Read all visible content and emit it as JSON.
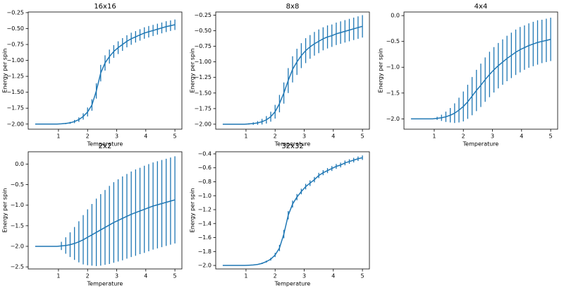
{
  "chart_data": [
    {
      "type": "errorbar",
      "title": "16x16",
      "xlabel": "Temperature",
      "ylabel": "Energy per spin",
      "color": "#1f77b4",
      "x": [
        0.2,
        0.35,
        0.5,
        0.65,
        0.8,
        0.95,
        1.1,
        1.25,
        1.4,
        1.55,
        1.7,
        1.85,
        2.0,
        2.15,
        2.3,
        2.45,
        2.6,
        2.75,
        2.9,
        3.05,
        3.2,
        3.35,
        3.5,
        3.65,
        3.8,
        3.95,
        4.1,
        4.25,
        4.4,
        4.55,
        4.7,
        4.85,
        5.0
      ],
      "values": [
        -2.0,
        -2.0,
        -2.0,
        -2.0,
        -2.0,
        -2.0,
        -1.996,
        -1.99,
        -1.98,
        -1.96,
        -1.93,
        -1.88,
        -1.81,
        -1.7,
        -1.48,
        -1.2,
        -1.04,
        -0.94,
        -0.86,
        -0.8,
        -0.75,
        -0.7,
        -0.66,
        -0.63,
        -0.6,
        -0.57,
        -0.55,
        -0.53,
        -0.51,
        -0.49,
        -0.47,
        -0.455,
        -0.44
      ],
      "errors": [
        0,
        0,
        0,
        0,
        0,
        0,
        0.005,
        0.01,
        0.015,
        0.025,
        0.035,
        0.05,
        0.07,
        0.09,
        0.12,
        0.13,
        0.12,
        0.11,
        0.1,
        0.1,
        0.1,
        0.095,
        0.095,
        0.09,
        0.09,
        0.09,
        0.09,
        0.088,
        0.086,
        0.085,
        0.085,
        0.083,
        0.082
      ],
      "xlim": [
        -0.04,
        5.24
      ],
      "xticks": [
        1,
        2,
        3,
        4,
        5
      ],
      "ylim": [
        -2.08,
        -0.24
      ],
      "yticks": [
        {
          "value": -2,
          "label": "−2.00"
        },
        {
          "value": -1.75,
          "label": "−1.75"
        },
        {
          "value": -1.5,
          "label": "−1.50"
        },
        {
          "value": -1.25,
          "label": "−1.25"
        },
        {
          "value": -1,
          "label": "−1.00"
        },
        {
          "value": -0.75,
          "label": "−0.75"
        },
        {
          "value": -0.5,
          "label": "−0.50"
        },
        {
          "value": -0.25,
          "label": "−0.25"
        }
      ]
    },
    {
      "type": "errorbar",
      "title": "8x8",
      "xlabel": "Temperature",
      "ylabel": "Energy per spin",
      "color": "#1f77b4",
      "x": [
        0.2,
        0.35,
        0.5,
        0.65,
        0.8,
        0.95,
        1.1,
        1.25,
        1.4,
        1.55,
        1.7,
        1.85,
        2.0,
        2.15,
        2.3,
        2.45,
        2.6,
        2.75,
        2.9,
        3.05,
        3.2,
        3.35,
        3.5,
        3.65,
        3.8,
        3.95,
        4.1,
        4.25,
        4.4,
        4.55,
        4.7,
        4.85,
        5.0
      ],
      "values": [
        -2.0,
        -2.0,
        -2.0,
        -2.0,
        -2.0,
        -2.0,
        -1.995,
        -1.99,
        -1.98,
        -1.96,
        -1.93,
        -1.88,
        -1.8,
        -1.67,
        -1.5,
        -1.3,
        -1.12,
        -1.0,
        -0.9,
        -0.82,
        -0.76,
        -0.71,
        -0.67,
        -0.63,
        -0.6,
        -0.58,
        -0.55,
        -0.53,
        -0.51,
        -0.49,
        -0.47,
        -0.45,
        -0.43
      ],
      "errors": [
        0,
        0,
        0,
        0,
        0,
        0,
        0.01,
        0.02,
        0.03,
        0.045,
        0.06,
        0.08,
        0.11,
        0.14,
        0.17,
        0.2,
        0.21,
        0.21,
        0.2,
        0.2,
        0.19,
        0.19,
        0.19,
        0.185,
        0.185,
        0.18,
        0.18,
        0.18,
        0.18,
        0.18,
        0.18,
        0.18,
        0.18
      ],
      "xlim": [
        -0.04,
        5.24
      ],
      "xticks": [
        1,
        2,
        3,
        4,
        5
      ],
      "ylim": [
        -2.08,
        -0.2
      ],
      "yticks": [
        {
          "value": -2,
          "label": "−2.00"
        },
        {
          "value": -1.75,
          "label": "−1.75"
        },
        {
          "value": -1.5,
          "label": "−1.50"
        },
        {
          "value": -1.25,
          "label": "−1.25"
        },
        {
          "value": -1,
          "label": "−1.00"
        },
        {
          "value": -0.75,
          "label": "−0.75"
        },
        {
          "value": -0.5,
          "label": "−0.50"
        },
        {
          "value": -0.25,
          "label": "−0.25"
        }
      ]
    },
    {
      "type": "errorbar",
      "title": "4x4",
      "xlabel": "Temperature",
      "ylabel": "Energy per spin",
      "color": "#1f77b4",
      "x": [
        0.2,
        0.35,
        0.5,
        0.65,
        0.8,
        0.95,
        1.1,
        1.25,
        1.4,
        1.55,
        1.7,
        1.85,
        2.0,
        2.15,
        2.3,
        2.45,
        2.6,
        2.75,
        2.9,
        3.05,
        3.2,
        3.35,
        3.5,
        3.65,
        3.8,
        3.95,
        4.1,
        4.25,
        4.4,
        4.55,
        4.7,
        4.85,
        5.0
      ],
      "values": [
        -2.0,
        -2.0,
        -2.0,
        -2.0,
        -2.0,
        -2.0,
        -1.99,
        -1.98,
        -1.96,
        -1.93,
        -1.89,
        -1.83,
        -1.76,
        -1.67,
        -1.56,
        -1.45,
        -1.35,
        -1.24,
        -1.14,
        -1.05,
        -0.97,
        -0.9,
        -0.83,
        -0.77,
        -0.71,
        -0.66,
        -0.62,
        -0.58,
        -0.55,
        -0.52,
        -0.5,
        -0.48,
        -0.46
      ],
      "errors": [
        0,
        0,
        0,
        0,
        0,
        0,
        0.03,
        0.06,
        0.1,
        0.14,
        0.19,
        0.24,
        0.29,
        0.33,
        0.37,
        0.4,
        0.42,
        0.43,
        0.44,
        0.44,
        0.44,
        0.44,
        0.44,
        0.44,
        0.44,
        0.44,
        0.43,
        0.43,
        0.43,
        0.43,
        0.42,
        0.42,
        0.42
      ],
      "xlim": [
        -0.04,
        5.24
      ],
      "xticks": [
        1,
        2,
        3,
        4,
        5
      ],
      "ylim": [
        -2.2,
        0.07
      ],
      "yticks": [
        {
          "value": -2,
          "label": "−2.0"
        },
        {
          "value": -1.5,
          "label": "−1.5"
        },
        {
          "value": -1,
          "label": "−1.0"
        },
        {
          "value": -0.5,
          "label": "−0.5"
        },
        {
          "value": 0,
          "label": "0.0"
        }
      ]
    },
    {
      "type": "errorbar",
      "title": "2x2",
      "xlabel": "Temperature",
      "ylabel": "Energy per spin",
      "color": "#1f77b4",
      "x": [
        0.2,
        0.35,
        0.5,
        0.65,
        0.8,
        0.95,
        1.1,
        1.25,
        1.4,
        1.55,
        1.7,
        1.85,
        2.0,
        2.15,
        2.3,
        2.45,
        2.6,
        2.75,
        2.9,
        3.05,
        3.2,
        3.35,
        3.5,
        3.65,
        3.8,
        3.95,
        4.1,
        4.25,
        4.4,
        4.55,
        4.7,
        4.85,
        5.0
      ],
      "values": [
        -2.0,
        -2.0,
        -2.0,
        -2.0,
        -2.0,
        -2.0,
        -1.99,
        -1.98,
        -1.96,
        -1.93,
        -1.89,
        -1.84,
        -1.78,
        -1.72,
        -1.66,
        -1.6,
        -1.54,
        -1.48,
        -1.42,
        -1.37,
        -1.32,
        -1.27,
        -1.22,
        -1.18,
        -1.14,
        -1.1,
        -1.06,
        -1.02,
        -0.99,
        -0.96,
        -0.93,
        -0.9,
        -0.87
      ],
      "errors": [
        0,
        0,
        0,
        0,
        0,
        0,
        0.1,
        0.2,
        0.3,
        0.4,
        0.5,
        0.6,
        0.68,
        0.75,
        0.82,
        0.87,
        0.91,
        0.95,
        0.98,
        1.0,
        1.02,
        1.03,
        1.04,
        1.05,
        1.05,
        1.06,
        1.06,
        1.06,
        1.06,
        1.06,
        1.06,
        1.06,
        1.06
      ],
      "xlim": [
        -0.04,
        5.24
      ],
      "xticks": [
        1,
        2,
        3,
        4,
        5
      ],
      "ylim": [
        -2.55,
        0.3
      ],
      "yticks": [
        {
          "value": -2.5,
          "label": "−2.5"
        },
        {
          "value": -2,
          "label": "−2.0"
        },
        {
          "value": -1.5,
          "label": "−1.5"
        },
        {
          "value": -1,
          "label": "−1.0"
        },
        {
          "value": -0.5,
          "label": "−0.5"
        },
        {
          "value": 0,
          "label": "0.0"
        }
      ]
    },
    {
      "type": "errorbar",
      "title": "32x32",
      "xlabel": "Temperature",
      "ylabel": "Energy per spin",
      "color": "#1f77b4",
      "x": [
        0.2,
        0.35,
        0.5,
        0.65,
        0.8,
        0.95,
        1.1,
        1.25,
        1.4,
        1.55,
        1.7,
        1.85,
        2.0,
        2.15,
        2.3,
        2.45,
        2.6,
        2.75,
        2.9,
        3.05,
        3.2,
        3.35,
        3.5,
        3.65,
        3.8,
        3.95,
        4.1,
        4.25,
        4.4,
        4.55,
        4.7,
        4.85,
        5.0
      ],
      "values": [
        -2.0,
        -2.0,
        -2.0,
        -2.0,
        -2.0,
        -2.0,
        -1.997,
        -1.993,
        -1.985,
        -1.97,
        -1.945,
        -1.91,
        -1.85,
        -1.75,
        -1.55,
        -1.28,
        -1.12,
        -1.02,
        -0.94,
        -0.87,
        -0.82,
        -0.77,
        -0.71,
        -0.67,
        -0.64,
        -0.61,
        -0.58,
        -0.56,
        -0.53,
        -0.51,
        -0.49,
        -0.47,
        -0.455
      ],
      "errors": [
        0,
        0,
        0,
        0,
        0,
        0,
        0.002,
        0.004,
        0.006,
        0.01,
        0.014,
        0.02,
        0.03,
        0.045,
        0.06,
        0.06,
        0.05,
        0.045,
        0.04,
        0.04,
        0.04,
        0.038,
        0.038,
        0.036,
        0.036,
        0.035,
        0.035,
        0.034,
        0.034,
        0.033,
        0.033,
        0.032,
        0.032
      ],
      "xlim": [
        -0.04,
        5.24
      ],
      "xticks": [
        1,
        2,
        3,
        4,
        5
      ],
      "ylim": [
        -2.05,
        -0.37
      ],
      "yticks": [
        {
          "value": -2,
          "label": "−2.0"
        },
        {
          "value": -1.8,
          "label": "−1.8"
        },
        {
          "value": -1.6,
          "label": "−1.6"
        },
        {
          "value": -1.4,
          "label": "−1.4"
        },
        {
          "value": -1.2,
          "label": "−1.2"
        },
        {
          "value": -1,
          "label": "−1.0"
        },
        {
          "value": -0.8,
          "label": "−0.8"
        },
        {
          "value": -0.6,
          "label": "−0.6"
        },
        {
          "value": -0.4,
          "label": "−0.4"
        }
      ]
    }
  ]
}
